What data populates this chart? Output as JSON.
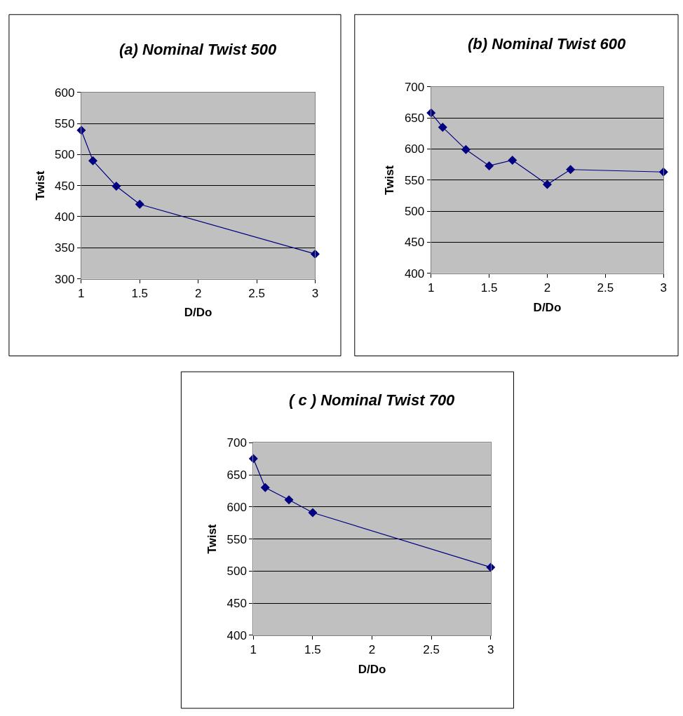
{
  "chart_data": [
    {
      "type": "line",
      "title": "(a) Nominal Twist 500",
      "xlabel": "D/Do",
      "ylabel": "Twist",
      "x": [
        1,
        1.1,
        1.3,
        1.5,
        3
      ],
      "series": [
        {
          "color": "#000080",
          "values": [
            539,
            490,
            449,
            420,
            340
          ]
        }
      ],
      "xlim": [
        1,
        3
      ],
      "xticks": [
        1,
        1.5,
        2,
        2.5,
        3
      ],
      "ylim": [
        300,
        600
      ],
      "yticks": [
        300,
        350,
        400,
        450,
        500,
        550,
        600
      ],
      "grid": "y",
      "marker": "diamond"
    },
    {
      "type": "line",
      "title": "(b) Nominal Twist 600",
      "xlabel": "D/Do",
      "ylabel": "Twist",
      "x": [
        1,
        1.1,
        1.3,
        1.5,
        1.7,
        2,
        2.2,
        3
      ],
      "series": [
        {
          "color": "#000080",
          "values": [
            658,
            635,
            599,
            573,
            582,
            543,
            567,
            563
          ]
        }
      ],
      "xlim": [
        1,
        3
      ],
      "xticks": [
        1,
        1.5,
        2,
        2.5,
        3
      ],
      "ylim": [
        400,
        700
      ],
      "yticks": [
        400,
        450,
        500,
        550,
        600,
        650,
        700
      ],
      "grid": "y",
      "marker": "diamond"
    },
    {
      "type": "line",
      "title": "( c ) Nominal Twist 700",
      "xlabel": "D/Do",
      "ylabel": "Twist",
      "x": [
        1,
        1.1,
        1.3,
        1.5,
        3
      ],
      "series": [
        {
          "color": "#000080",
          "values": [
            675,
            630,
            611,
            591,
            506
          ]
        }
      ],
      "xlim": [
        1,
        3
      ],
      "xticks": [
        1,
        1.5,
        2,
        2.5,
        3
      ],
      "ylim": [
        400,
        700
      ],
      "yticks": [
        400,
        450,
        500,
        550,
        600,
        650,
        700
      ],
      "grid": "y",
      "marker": "diamond"
    }
  ]
}
